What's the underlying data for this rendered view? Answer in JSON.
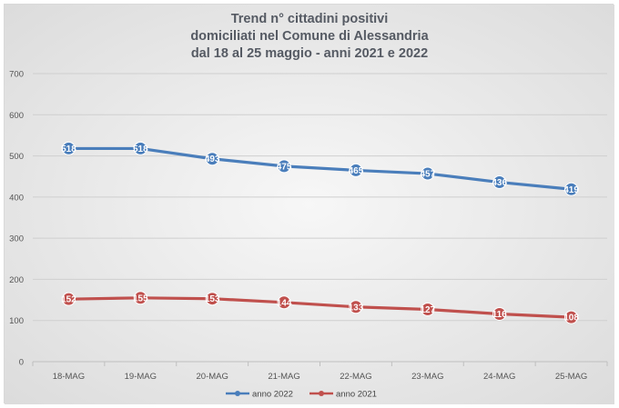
{
  "chart_data": {
    "type": "line",
    "title_lines": [
      "Trend n° cittadini positivi",
      "domiciliati nel Comune di Alessandria",
      "dal 18 al 25 maggio - anni 2021 e 2022"
    ],
    "categories": [
      "18-MAG",
      "19-MAG",
      "20-MAG",
      "21-MAG",
      "22-MAG",
      "23-MAG",
      "24-MAG",
      "25-MAG"
    ],
    "ylim": [
      0,
      700
    ],
    "yticks": [
      0,
      100,
      200,
      300,
      400,
      500,
      600,
      700
    ],
    "grid": true,
    "legend": "bottom",
    "series": [
      {
        "name": "anno 2022",
        "color": "#4a7ebb",
        "values": [
          518,
          518,
          493,
          475,
          465,
          457,
          436,
          419
        ],
        "labels": [
          "518",
          "518",
          "493",
          "475",
          "465",
          "457",
          "436",
          "419"
        ]
      },
      {
        "name": "anno 2021",
        "color": "#c0504d",
        "values": [
          152,
          155,
          153,
          144,
          133,
          127,
          116,
          108
        ],
        "labels": [
          "152",
          "155",
          "153",
          "144",
          "133",
          "127",
          "116",
          "108"
        ]
      }
    ]
  }
}
